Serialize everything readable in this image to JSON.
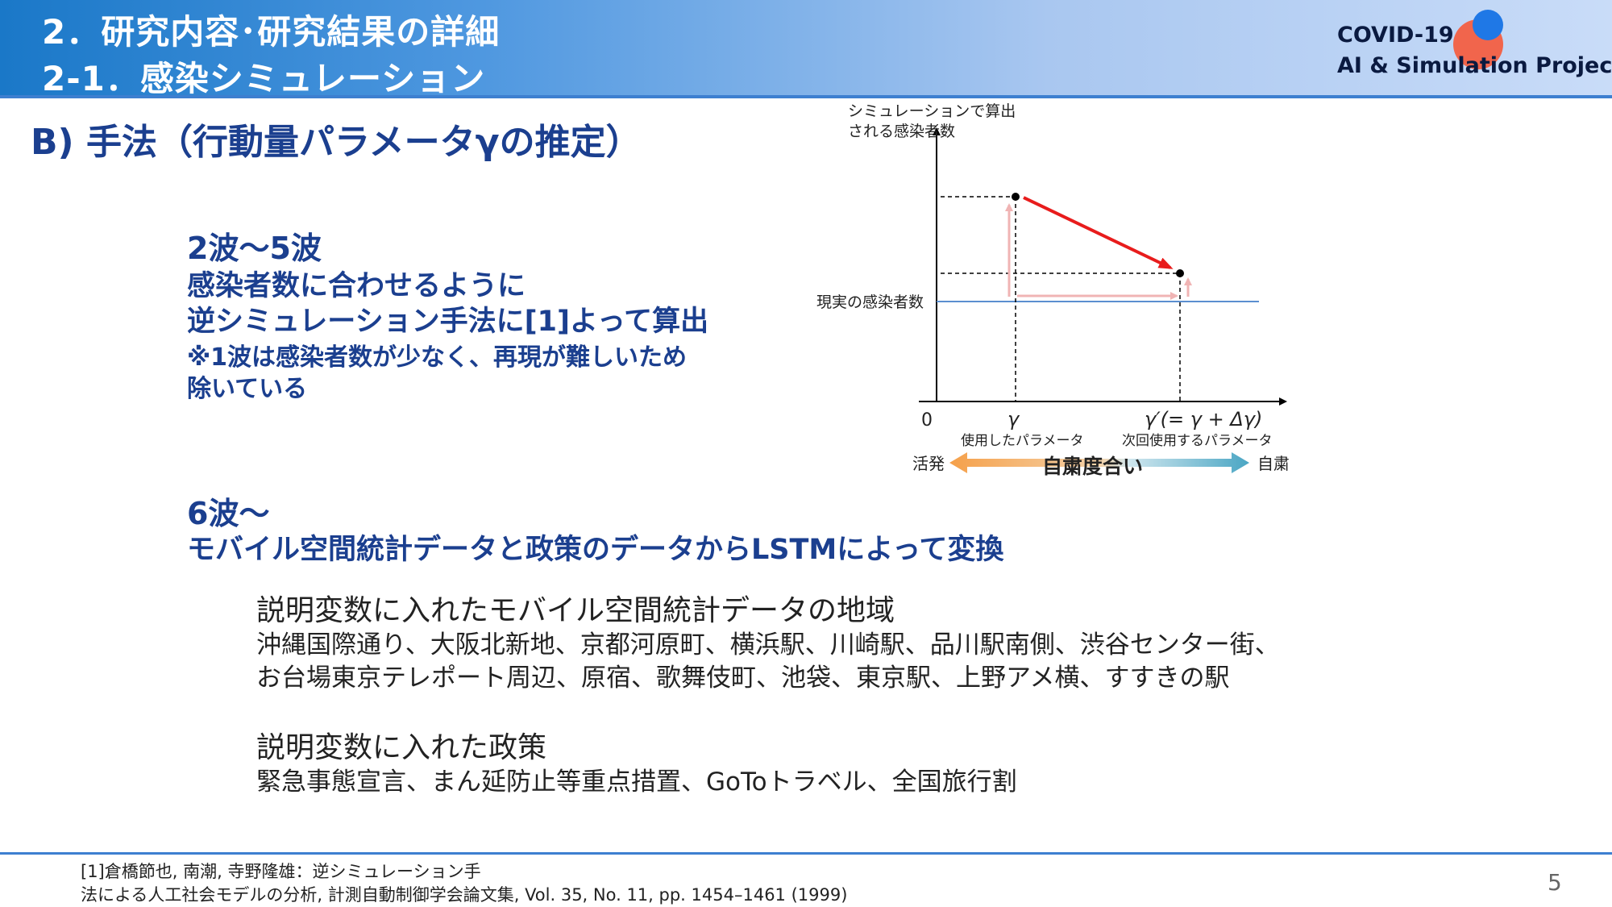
{
  "header": {
    "title_line1": "2．研究内容･研究結果の詳細",
    "title_line2": "2-1．感染シミュレーション",
    "logo_line1": "COVID-19",
    "logo_line2": "AI & Simulation Project",
    "colors": {
      "gradient_start": "#1a78c8",
      "gradient_end": "#c9dcf8",
      "logo_red": "#f1654c",
      "logo_blue": "#1f78e6"
    }
  },
  "section_title": "B) 手法（行動量パラメータγの推定）",
  "wave2_5": {
    "heading": "2波～5波",
    "line1": "感染者数に合わせるように",
    "line2": "逆シミュレーション手法に[1]よって算出",
    "note1": "※1波は感染者数が少なく、再現が難しいため",
    "note2": "除いている"
  },
  "wave6": {
    "heading": "6波～",
    "line1": "モバイル空間統計データと政策のデータからLSTMによって変換"
  },
  "mobile_regions": {
    "heading": "説明変数に入れたモバイル空間統計データの地域",
    "line1": "沖縄国際通り、大阪北新地、京都河原町、横浜駅、川崎駅、品川駅南側、渋谷センター街、",
    "line2": "お台場東京テレポート周辺、原宿、歌舞伎町、池袋、東京駅、上野アメ横、すすきの駅"
  },
  "policies": {
    "heading": "説明変数に入れた政策",
    "line1": "緊急事態宣言、まん延防止等重点措置、GoToトラベル、全国旅行割"
  },
  "diagram": {
    "y_label_line1": "シミュレーションで算出",
    "y_label_line2": "される感染者数",
    "actual_label": "現実の感染者数",
    "origin": "0",
    "gamma": "γ",
    "gamma_desc": "使用したパラメータ",
    "gamma_prime": "γ′(= γ + Δγ)",
    "gamma_prime_desc": "次回使用するパラメータ",
    "left_label": "活発",
    "center_label": "自粛度合い",
    "right_label": "自粛",
    "colors": {
      "red_line": "#e81c1c",
      "pink": "#f0b4b4",
      "actual_line": "#5b8fd0",
      "orange": "#f5a04a",
      "teal": "#4aa6c4"
    }
  },
  "references": {
    "line1": "[1]倉橋節也, 南潮, 寺野隆雄：逆シミュレーション手",
    "line2": "法による人工社会モデルの分析, 計測自動制御学会論文集, Vol. 35, No. 11, pp. 1454–1461 (1999)"
  },
  "page_number": "5"
}
